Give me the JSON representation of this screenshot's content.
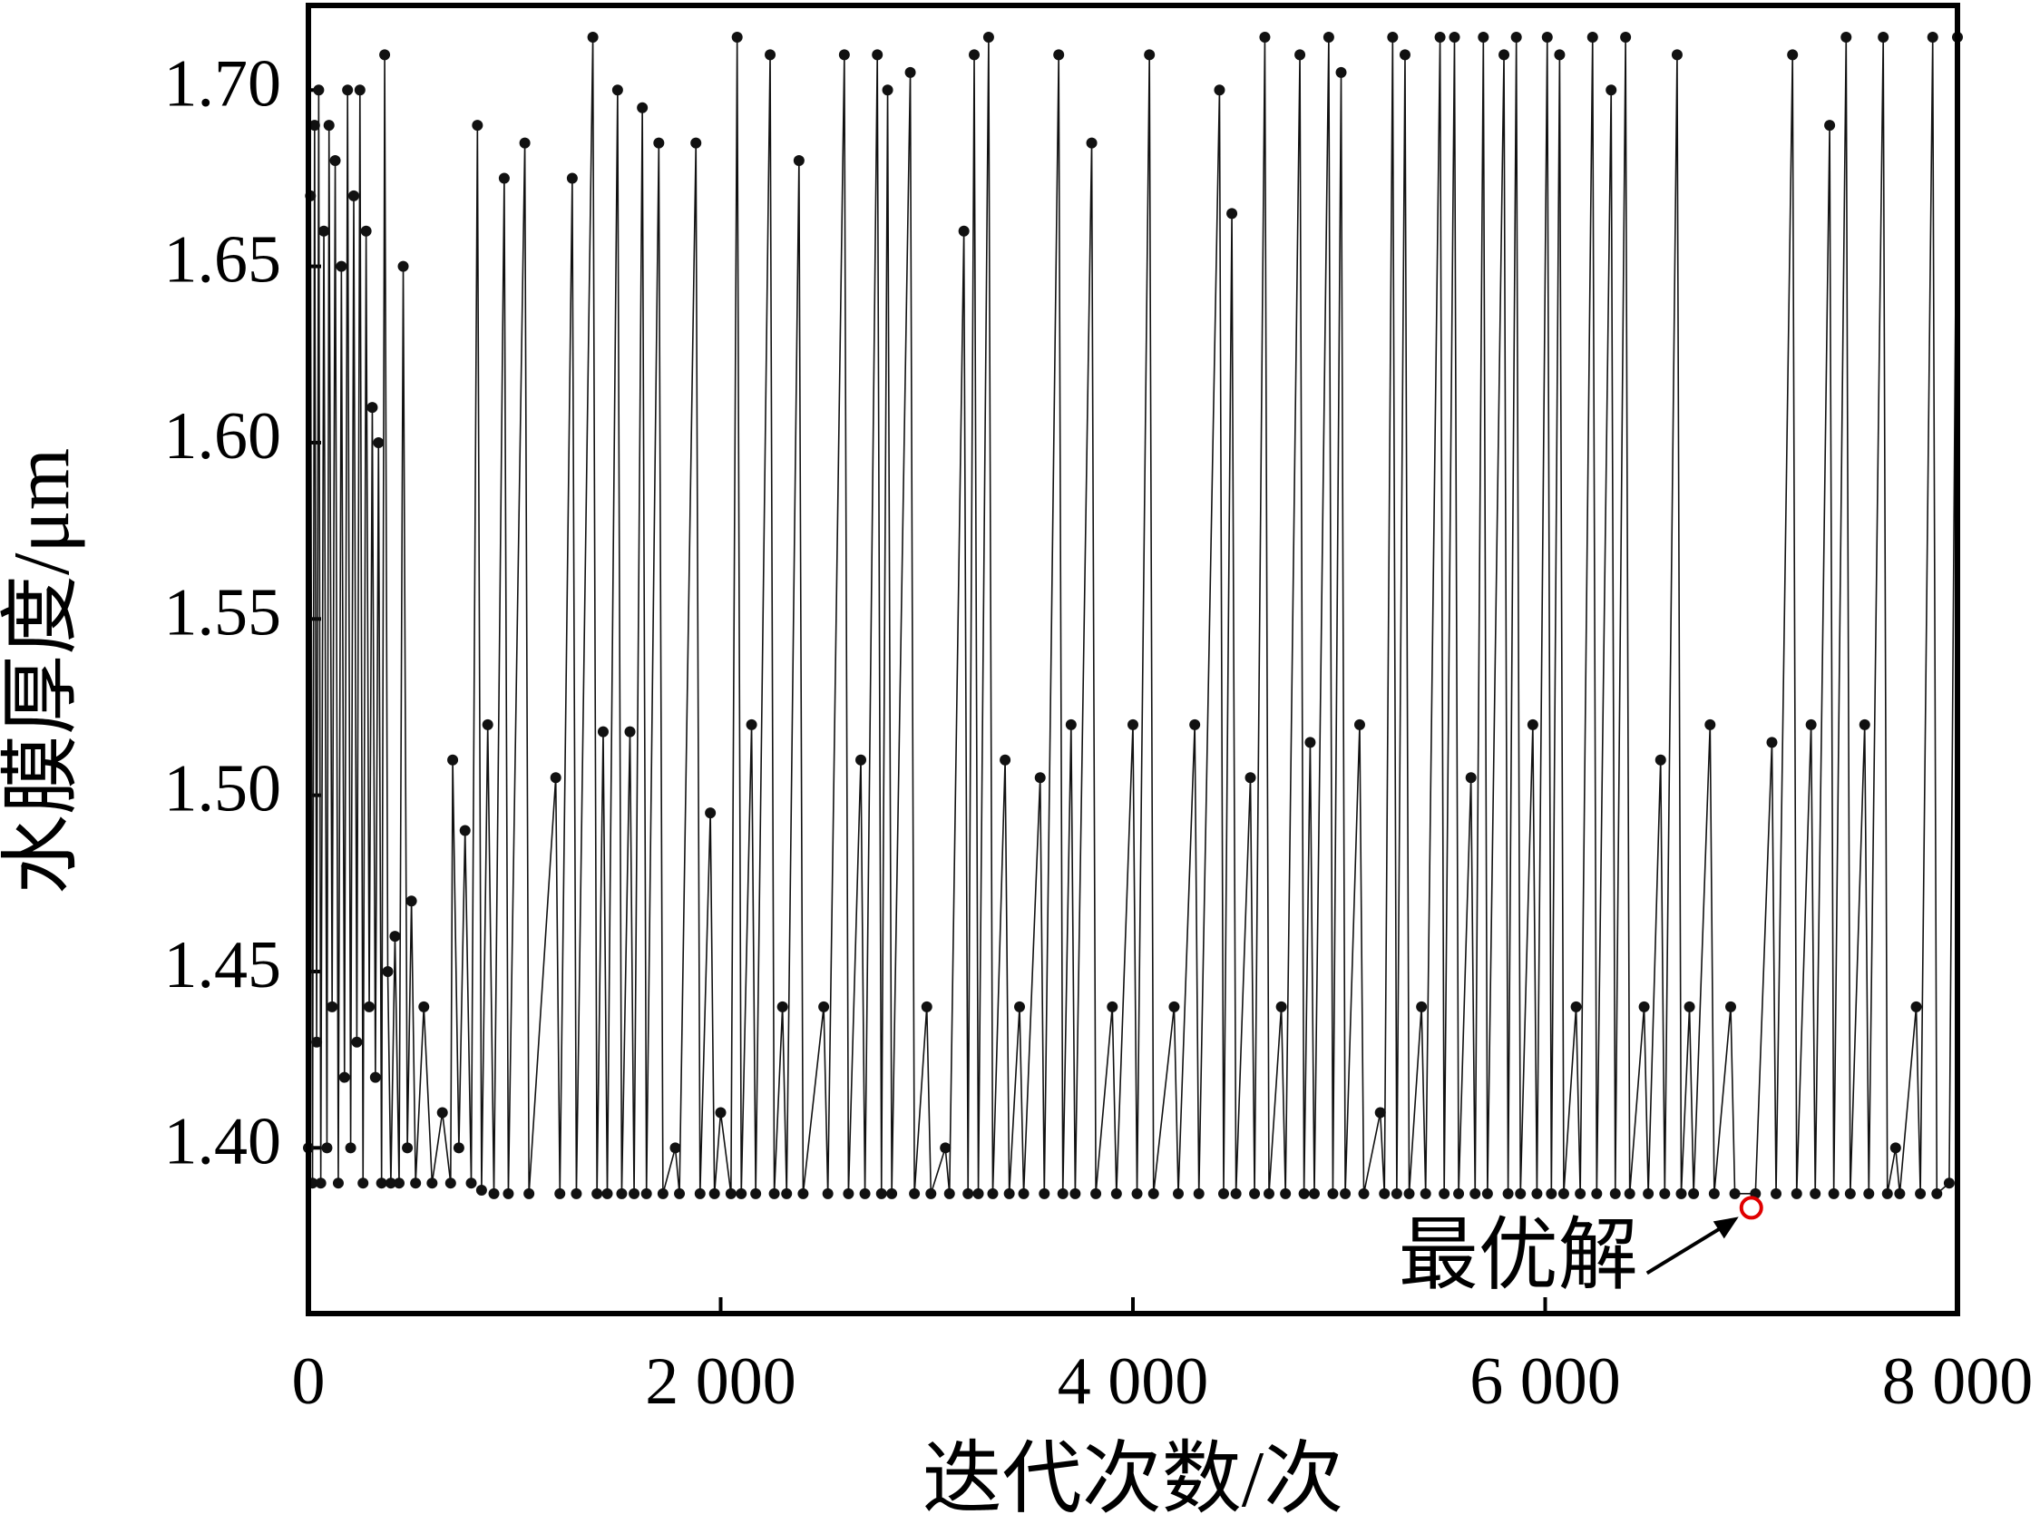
{
  "chart_data": {
    "type": "line",
    "x_label": "迭代次数/次",
    "y_label": "水膜厚度/μm",
    "xlim": [
      0,
      8000
    ],
    "ylim": [
      1.353,
      1.724
    ],
    "xticks": [
      0,
      {
        "value": 2000,
        "label": "2 000"
      },
      {
        "value": 4000,
        "label": "4 000"
      },
      {
        "value": 6000,
        "label": "6 000"
      },
      {
        "value": 8000,
        "label": "8 000"
      }
    ],
    "yticks": [
      1.4,
      1.45,
      1.5,
      1.55,
      1.6,
      1.65,
      1.7
    ],
    "color": "#111111",
    "x": [
      0,
      10,
      20,
      30,
      40,
      50,
      60,
      75,
      90,
      100,
      115,
      130,
      145,
      160,
      175,
      190,
      205,
      220,
      235,
      250,
      265,
      280,
      295,
      310,
      325,
      340,
      355,
      370,
      385,
      400,
      420,
      440,
      460,
      480,
      500,
      520,
      560,
      600,
      650,
      690,
      700,
      730,
      760,
      790,
      820,
      840,
      870,
      900,
      950,
      970,
      1050,
      1070,
      1200,
      1220,
      1280,
      1300,
      1380,
      1400,
      1430,
      1450,
      1500,
      1520,
      1560,
      1580,
      1620,
      1640,
      1700,
      1720,
      1780,
      1800,
      1880,
      1900,
      1950,
      1970,
      2000,
      2050,
      2080,
      2100,
      2150,
      2170,
      2240,
      2260,
      2300,
      2320,
      2380,
      2400,
      2500,
      2520,
      2600,
      2620,
      2680,
      2700,
      2760,
      2780,
      2810,
      2830,
      2920,
      2940,
      3000,
      3020,
      3090,
      3110,
      3180,
      3200,
      3230,
      3250,
      3300,
      3320,
      3380,
      3400,
      3450,
      3470,
      3550,
      3570,
      3640,
      3660,
      3700,
      3720,
      3800,
      3820,
      3900,
      3920,
      4000,
      4020,
      4080,
      4100,
      4200,
      4220,
      4300,
      4320,
      4420,
      4440,
      4480,
      4500,
      4570,
      4590,
      4640,
      4660,
      4720,
      4740,
      4810,
      4830,
      4860,
      4880,
      4950,
      4970,
      5010,
      5030,
      5100,
      5120,
      5200,
      5220,
      5260,
      5280,
      5320,
      5340,
      5400,
      5420,
      5490,
      5510,
      5560,
      5580,
      5640,
      5660,
      5700,
      5720,
      5800,
      5820,
      5860,
      5880,
      5940,
      5960,
      6010,
      6030,
      6070,
      6090,
      6150,
      6170,
      6230,
      6250,
      6320,
      6340,
      6390,
      6410,
      6480,
      6500,
      6560,
      6580,
      6640,
      6660,
      6700,
      6720,
      6800,
      6820,
      6900,
      6920,
      7020,
      7100,
      7120,
      7200,
      7220,
      7290,
      7310,
      7380,
      7400,
      7460,
      7480,
      7550,
      7570,
      7640,
      7660,
      7700,
      7720,
      7800,
      7820,
      7880,
      7900,
      7960,
      8000
    ],
    "values": [
      1.4,
      1.67,
      1.39,
      1.69,
      1.43,
      1.7,
      1.39,
      1.66,
      1.4,
      1.69,
      1.44,
      1.68,
      1.39,
      1.65,
      1.42,
      1.7,
      1.4,
      1.67,
      1.43,
      1.7,
      1.39,
      1.66,
      1.44,
      1.61,
      1.42,
      1.6,
      1.39,
      1.71,
      1.45,
      1.39,
      1.46,
      1.39,
      1.65,
      1.4,
      1.47,
      1.39,
      1.44,
      1.39,
      1.41,
      1.39,
      1.51,
      1.4,
      1.49,
      1.39,
      1.69,
      1.388,
      1.52,
      1.387,
      1.675,
      1.387,
      1.685,
      1.387,
      1.505,
      1.387,
      1.675,
      1.387,
      1.715,
      1.387,
      1.518,
      1.387,
      1.7,
      1.387,
      1.518,
      1.387,
      1.695,
      1.387,
      1.685,
      1.387,
      1.4,
      1.387,
      1.685,
      1.387,
      1.495,
      1.387,
      1.41,
      1.387,
      1.715,
      1.387,
      1.52,
      1.387,
      1.71,
      1.387,
      1.44,
      1.387,
      1.68,
      1.387,
      1.44,
      1.387,
      1.71,
      1.387,
      1.51,
      1.387,
      1.71,
      1.387,
      1.7,
      1.387,
      1.705,
      1.387,
      1.44,
      1.387,
      1.4,
      1.387,
      1.66,
      1.387,
      1.71,
      1.387,
      1.715,
      1.387,
      1.51,
      1.387,
      1.44,
      1.387,
      1.505,
      1.387,
      1.71,
      1.387,
      1.52,
      1.387,
      1.685,
      1.387,
      1.44,
      1.387,
      1.52,
      1.387,
      1.71,
      1.387,
      1.44,
      1.387,
      1.52,
      1.387,
      1.7,
      1.387,
      1.665,
      1.387,
      1.505,
      1.387,
      1.715,
      1.387,
      1.44,
      1.387,
      1.71,
      1.387,
      1.515,
      1.387,
      1.715,
      1.387,
      1.705,
      1.387,
      1.52,
      1.387,
      1.41,
      1.387,
      1.715,
      1.387,
      1.71,
      1.387,
      1.44,
      1.387,
      1.715,
      1.387,
      1.715,
      1.387,
      1.505,
      1.387,
      1.715,
      1.387,
      1.71,
      1.387,
      1.715,
      1.387,
      1.52,
      1.387,
      1.715,
      1.387,
      1.71,
      1.387,
      1.44,
      1.387,
      1.715,
      1.387,
      1.7,
      1.387,
      1.715,
      1.387,
      1.44,
      1.387,
      1.51,
      1.387,
      1.71,
      1.387,
      1.44,
      1.387,
      1.52,
      1.387,
      1.44,
      1.387,
      1.387,
      1.515,
      1.387,
      1.71,
      1.387,
      1.52,
      1.387,
      1.69,
      1.387,
      1.715,
      1.387,
      1.52,
      1.387,
      1.715,
      1.387,
      1.4,
      1.387,
      1.44,
      1.387,
      1.715,
      1.387,
      1.39,
      1.715
    ],
    "optimum": {
      "label": "最优解",
      "x": 7000,
      "y": 1.383,
      "color": "#e00000"
    }
  }
}
